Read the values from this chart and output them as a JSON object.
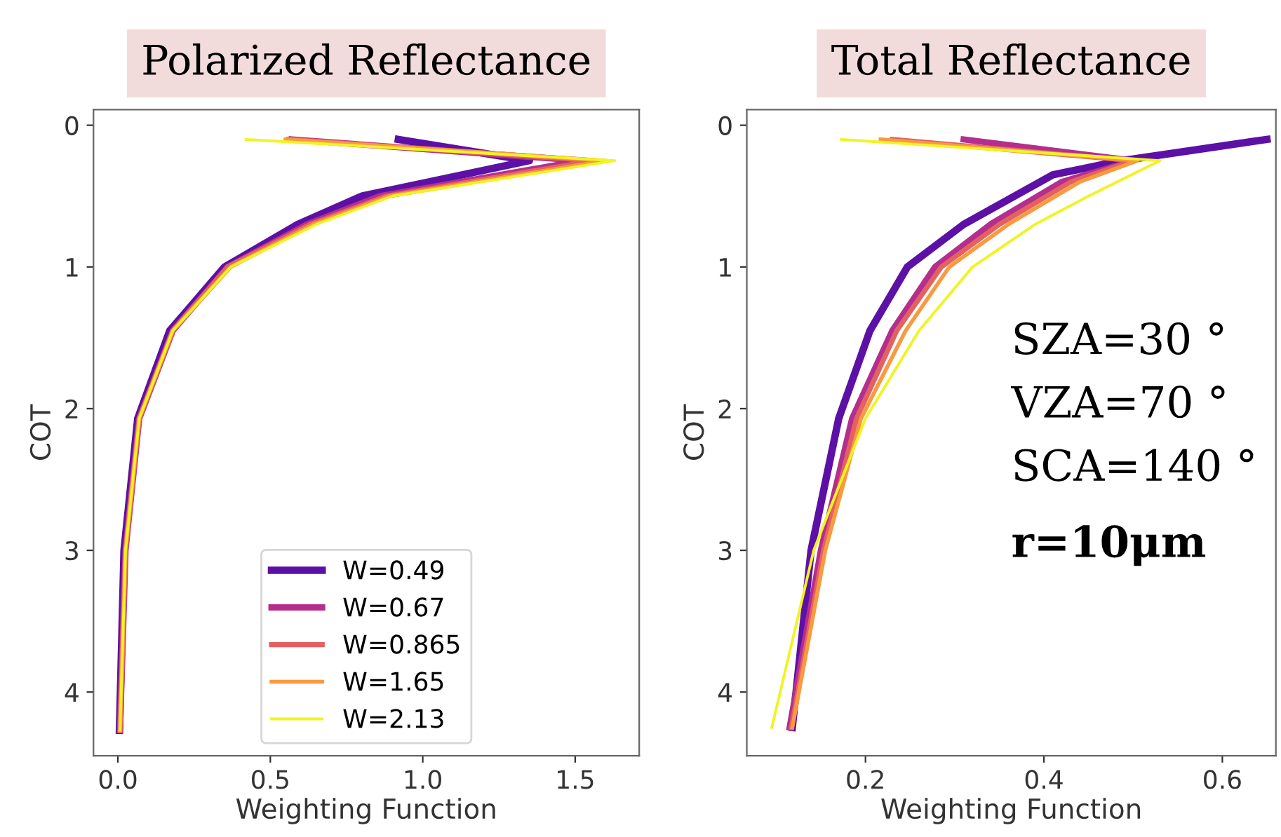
{
  "chart_data": [
    {
      "type": "line",
      "title": "Polarized Reflectance",
      "xlabel": "Weighting Function",
      "ylabel": "COT",
      "xlim": [
        -0.08,
        1.71
      ],
      "xticks": [
        {
          "value": 0,
          "label": "0.0"
        },
        0.5,
        {
          "value": 1,
          "label": "1.0"
        },
        1.5
      ],
      "ylim": [
        4.45,
        -0.11
      ],
      "yticks": [
        0,
        1,
        2,
        3,
        4
      ],
      "grid": false,
      "legend": "bottom",
      "line_style": "solid",
      "series": [
        {
          "name": "W=0.49",
          "color": "#5c10a6",
          "x": [
            0.92,
            1.35,
            0.8,
            0.59,
            0.35,
            0.17,
            0.065,
            0.02,
            0.005
          ],
          "values": [
            0.1,
            0.25,
            0.5,
            0.7,
            1.0,
            1.45,
            2.07,
            3.0,
            4.27
          ]
        },
        {
          "name": "W=0.67",
          "color": "#b42e8f",
          "x": [
            0.57,
            1.52,
            0.86,
            0.62,
            0.36,
            0.18,
            0.07,
            0.025,
            0.007
          ],
          "values": [
            0.1,
            0.25,
            0.5,
            0.7,
            1.0,
            1.45,
            2.07,
            3.0,
            4.27
          ]
        },
        {
          "name": "W=0.865",
          "color": "#e3625f",
          "x": [
            0.56,
            1.56,
            0.88,
            0.63,
            0.36,
            0.18,
            0.07,
            0.025,
            0.007
          ],
          "values": [
            0.1,
            0.25,
            0.5,
            0.7,
            1.0,
            1.45,
            2.07,
            3.0,
            4.27
          ]
        },
        {
          "name": "W=1.65",
          "color": "#f89a40",
          "x": [
            0.55,
            1.6,
            0.89,
            0.64,
            0.37,
            0.18,
            0.07,
            0.025,
            0.007
          ],
          "values": [
            0.1,
            0.25,
            0.5,
            0.7,
            1.0,
            1.45,
            2.07,
            3.0,
            4.27
          ]
        },
        {
          "name": "W=2.13",
          "color": "#f0f423",
          "x": [
            0.42,
            1.63,
            0.9,
            0.65,
            0.37,
            0.18,
            0.07,
            0.025,
            0.007
          ],
          "values": [
            0.1,
            0.25,
            0.5,
            0.7,
            1.0,
            1.45,
            2.07,
            3.0,
            4.27
          ]
        }
      ]
    },
    {
      "type": "line",
      "title": "Total Reflectance",
      "xlabel": "Weighting Function",
      "ylabel": "COT",
      "xlim": [
        0.067,
        0.66
      ],
      "xticks": [
        0.2,
        0.4,
        0.6
      ],
      "ylim": [
        4.45,
        -0.11
      ],
      "yticks": [
        0,
        1,
        2,
        3,
        4
      ],
      "grid": false,
      "line_style": "solid",
      "annotations": [
        "SZA=30 °",
        "VZA=70 °",
        "SCA=140 °",
        "r=10μm"
      ],
      "series": [
        {
          "color": "#5c10a6",
          "x": [
            0.65,
            0.487,
            0.41,
            0.31,
            0.247,
            0.205,
            0.17,
            0.139,
            0.118
          ],
          "values": [
            0.1,
            0.25,
            0.35,
            0.7,
            1.0,
            1.45,
            2.07,
            3.0,
            4.25
          ]
        },
        {
          "color": "#b42e8f",
          "x": [
            0.31,
            0.5,
            0.42,
            0.34,
            0.278,
            0.23,
            0.185,
            0.15,
            0.115
          ],
          "values": [
            0.1,
            0.25,
            0.4,
            0.7,
            1.0,
            1.45,
            2.07,
            3.0,
            4.25
          ]
        },
        {
          "color": "#e3625f",
          "x": [
            0.23,
            0.5,
            0.43,
            0.35,
            0.285,
            0.235,
            0.19,
            0.153,
            0.117
          ],
          "values": [
            0.1,
            0.25,
            0.4,
            0.7,
            1.0,
            1.45,
            2.07,
            3.0,
            4.25
          ]
        },
        {
          "color": "#f89a40",
          "x": [
            0.217,
            0.505,
            0.44,
            0.36,
            0.294,
            0.245,
            0.195,
            0.155,
            0.118
          ],
          "values": [
            0.1,
            0.25,
            0.4,
            0.7,
            1.0,
            1.45,
            2.07,
            3.0,
            4.25
          ]
        },
        {
          "color": "#f0f423",
          "x": [
            0.173,
            0.53,
            0.45,
            0.39,
            0.32,
            0.26,
            0.2,
            0.142,
            0.095
          ],
          "values": [
            0.1,
            0.25,
            0.5,
            0.7,
            1.0,
            1.45,
            2.07,
            3.0,
            4.25
          ]
        }
      ]
    }
  ]
}
